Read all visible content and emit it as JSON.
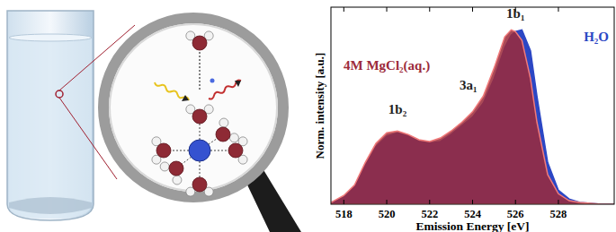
{
  "chart_data": {
    "type": "area",
    "x_label": "Emission Energy [eV]",
    "y_label": "Norm. intensity [a.u.]",
    "x": [
      517.4,
      518,
      518.5,
      519,
      519.5,
      520,
      520.5,
      521,
      521.5,
      522,
      522.5,
      523,
      523.5,
      524,
      524.5,
      525,
      525.5,
      525.8,
      526,
      526.3,
      526.7,
      527,
      527.5,
      528,
      528.5,
      529,
      530,
      530.6
    ],
    "series": [
      {
        "name": "H₂O",
        "color": "#2c47c4",
        "values": [
          0.01,
          0.04,
          0.1,
          0.22,
          0.33,
          0.39,
          0.41,
          0.39,
          0.36,
          0.35,
          0.36,
          0.4,
          0.45,
          0.5,
          0.58,
          0.72,
          0.9,
          0.97,
          0.99,
          1.0,
          0.88,
          0.62,
          0.24,
          0.08,
          0.03,
          0.01,
          0.0,
          0.0
        ]
      },
      {
        "name": "4M MgCl₂(aq.)",
        "color": "#9c2a3a",
        "values": [
          0.01,
          0.05,
          0.11,
          0.24,
          0.35,
          0.41,
          0.42,
          0.4,
          0.37,
          0.36,
          0.38,
          0.42,
          0.47,
          0.53,
          0.62,
          0.78,
          0.96,
          1.0,
          0.99,
          0.94,
          0.72,
          0.47,
          0.17,
          0.06,
          0.02,
          0.01,
          0.0,
          0.0
        ]
      }
    ],
    "annotations": [
      {
        "text": "1b₂",
        "x": 520.5,
        "y": 0.52
      },
      {
        "text": "3a₁",
        "x": 523.8,
        "y": 0.66
      },
      {
        "text": "1b₁",
        "x": 526.0,
        "y": 1.07
      }
    ],
    "xlim": [
      517.4,
      530.6
    ],
    "ylim": [
      0,
      1.13
    ],
    "xticks": [
      518,
      520,
      522,
      524,
      526,
      528
    ],
    "tick_labels": "x",
    "legend": "upper left",
    "grid": false
  }
}
